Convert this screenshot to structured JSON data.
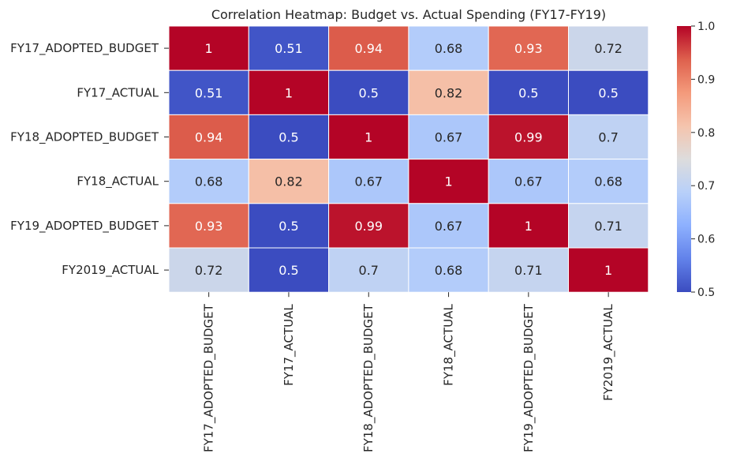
{
  "chart_data": {
    "type": "heatmap",
    "title": "Correlation Heatmap: Budget vs. Actual Spending (FY17-FY19)",
    "rows": [
      "FY17_ADOPTED_BUDGET",
      "FY17_ACTUAL",
      "FY18_ADOPTED_BUDGET",
      "FY18_ACTUAL",
      "FY19_ADOPTED_BUDGET",
      "FY2019_ACTUAL"
    ],
    "columns": [
      "FY17_ADOPTED_BUDGET",
      "FY17_ACTUAL",
      "FY18_ADOPTED_BUDGET",
      "FY18_ACTUAL",
      "FY19_ADOPTED_BUDGET",
      "FY2019_ACTUAL"
    ],
    "values": [
      [
        1,
        0.51,
        0.94,
        0.68,
        0.93,
        0.72
      ],
      [
        0.51,
        1,
        0.5,
        0.82,
        0.5,
        0.5
      ],
      [
        0.94,
        0.5,
        1,
        0.67,
        0.99,
        0.7
      ],
      [
        0.68,
        0.82,
        0.67,
        1,
        0.67,
        0.68
      ],
      [
        0.93,
        0.5,
        0.99,
        0.67,
        1,
        0.71
      ],
      [
        0.72,
        0.5,
        0.7,
        0.68,
        0.71,
        1
      ]
    ],
    "colormap": "coolwarm",
    "vmin": 0.5,
    "vmax": 1.0,
    "colorbar_ticks": [
      "1.0",
      "0.9",
      "0.8",
      "0.7",
      "0.6",
      "0.5"
    ]
  }
}
